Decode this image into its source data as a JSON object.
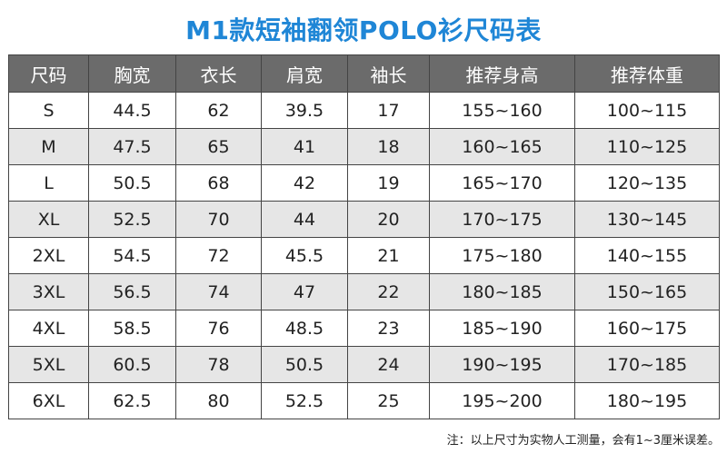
{
  "title": "M1款短袖翻领POLO衫尺码表",
  "table": {
    "headers": [
      "尺码",
      "胸宽",
      "衣长",
      "肩宽",
      "袖长",
      "推荐身高",
      "推荐体重"
    ],
    "rows": [
      [
        "S",
        "44.5",
        "62",
        "39.5",
        "17",
        "155~160",
        "100~115"
      ],
      [
        "M",
        "47.5",
        "65",
        "41",
        "18",
        "160~165",
        "110~125"
      ],
      [
        "L",
        "50.5",
        "68",
        "42",
        "19",
        "165~170",
        "120~135"
      ],
      [
        "XL",
        "52.5",
        "70",
        "44",
        "20",
        "170~175",
        "130~145"
      ],
      [
        "2XL",
        "54.5",
        "72",
        "45.5",
        "21",
        "175~180",
        "140~155"
      ],
      [
        "3XL",
        "56.5",
        "74",
        "47",
        "22",
        "180~185",
        "150~165"
      ],
      [
        "4XL",
        "58.5",
        "76",
        "48.5",
        "23",
        "185~190",
        "160~175"
      ],
      [
        "5XL",
        "60.5",
        "78",
        "50.5",
        "24",
        "190~195",
        "170~185"
      ],
      [
        "6XL",
        "62.5",
        "80",
        "52.5",
        "25",
        "195~200",
        "180~195"
      ]
    ]
  },
  "footnote": "注：以上尺寸为实物人工测量，会有1~3厘米误差。",
  "colors": {
    "title": "#1f86d6",
    "header_bg": "#6b6b6b",
    "row_alt_bg": "#e6e6e6"
  }
}
